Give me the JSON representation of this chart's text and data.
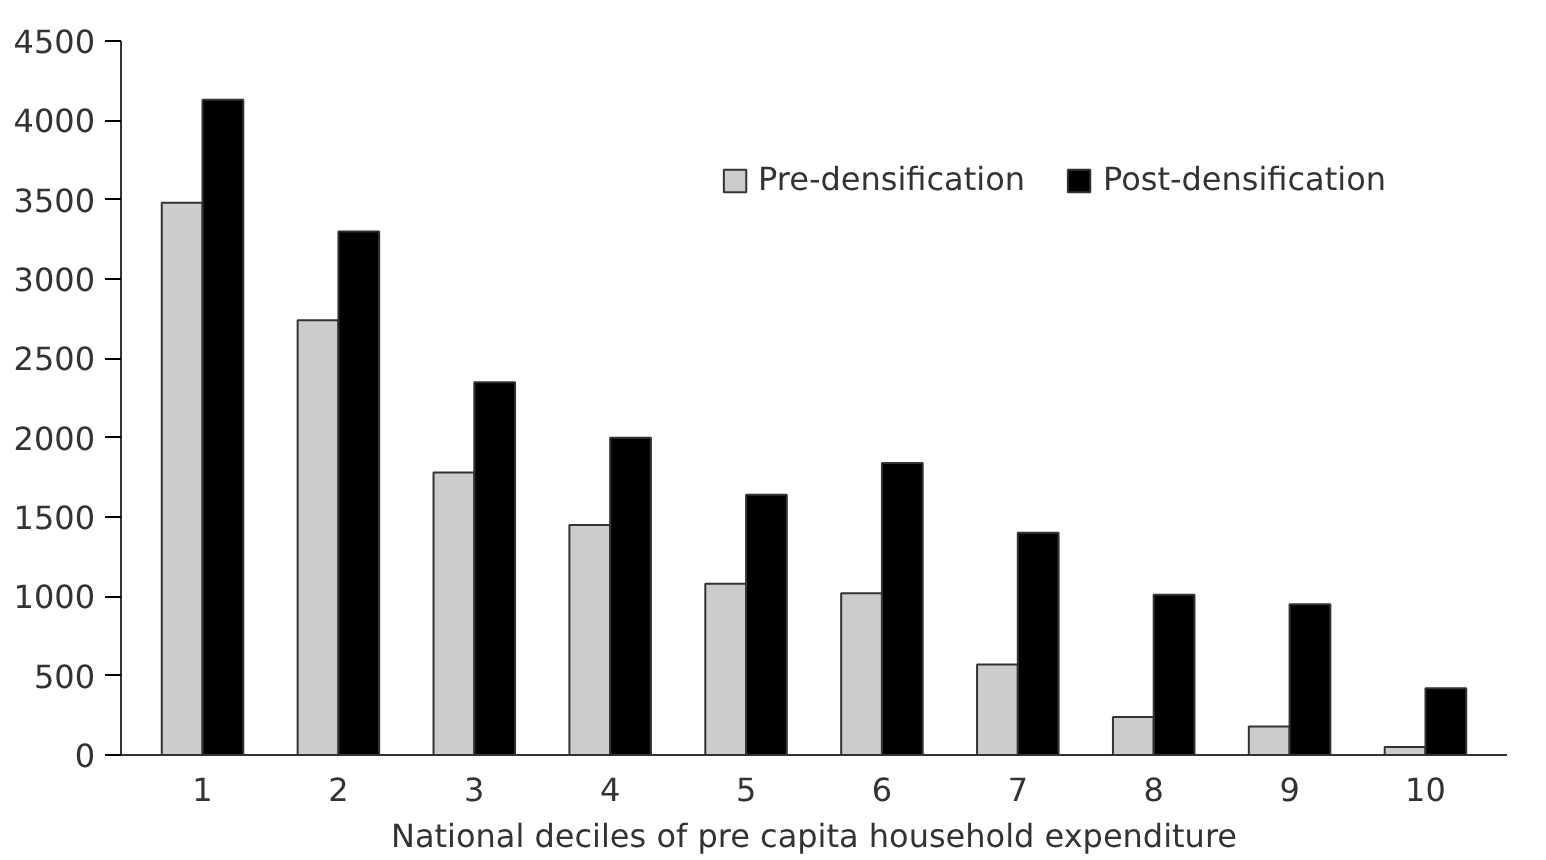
{
  "chart_data": {
    "type": "bar",
    "xlabel": "National deciles of pre capita household expenditure",
    "categories": [
      "1",
      "2",
      "3",
      "4",
      "5",
      "6",
      "7",
      "8",
      "9",
      "10"
    ],
    "series": [
      {
        "name": "Pre-densification",
        "color": "#cccccc",
        "values": [
          3480,
          2740,
          1780,
          1450,
          1080,
          1020,
          570,
          240,
          180,
          50
        ]
      },
      {
        "name": "Post-densification",
        "color": "#000000",
        "values": [
          4130,
          3300,
          2350,
          2000,
          1640,
          1840,
          1400,
          1010,
          950,
          420
        ]
      }
    ],
    "ylim": [
      0,
      4500
    ],
    "yticks": [
      0,
      500,
      1000,
      1500,
      2000,
      2500,
      3000,
      3500,
      4000,
      4500
    ],
    "grid": false,
    "legend": "top right"
  }
}
